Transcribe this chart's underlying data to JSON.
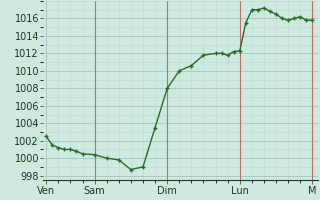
{
  "background_color": "#cceae0",
  "plot_bg_color": "#cceae0",
  "line_color": "#2d6a2d",
  "marker_color": "#2d6a2d",
  "grid_major_color": "#aaccc4",
  "grid_minor_color": "#bcddd6",
  "tick_color": "#1a3a1a",
  "label_color": "#1a3a1a",
  "vline_color": "#cc4444",
  "ylim": [
    997.5,
    1018.0
  ],
  "yticks": [
    998,
    1000,
    1002,
    1004,
    1006,
    1008,
    1010,
    1012,
    1014,
    1016
  ],
  "day_labels": [
    "Ven",
    "Sam",
    "Dim",
    "Lun",
    "M"
  ],
  "day_positions": [
    0,
    16,
    40,
    64,
    88
  ],
  "xlim": [
    -1,
    90
  ],
  "x": [
    0,
    2,
    4,
    6,
    8,
    10,
    12,
    16,
    20,
    24,
    28,
    32,
    36,
    40,
    44,
    48,
    52,
    56,
    58,
    60,
    62,
    64,
    66,
    68,
    70,
    72,
    74,
    76,
    78,
    80,
    82,
    84,
    86,
    88
  ],
  "y": [
    1002.5,
    1001.5,
    1001.2,
    1001.0,
    1001.0,
    1000.8,
    1000.5,
    1000.4,
    1000.0,
    999.8,
    998.7,
    999.0,
    1003.5,
    1008.0,
    1010.0,
    1010.6,
    1011.8,
    1012.0,
    1012.0,
    1011.8,
    1012.2,
    1012.3,
    1015.5,
    1017.0,
    1017.0,
    1017.2,
    1016.8,
    1016.5,
    1016.0,
    1015.8,
    1016.0,
    1016.2,
    1015.8,
    1015.8
  ],
  "vline_positions": [
    16,
    40,
    64,
    88
  ],
  "fontsize": 7
}
